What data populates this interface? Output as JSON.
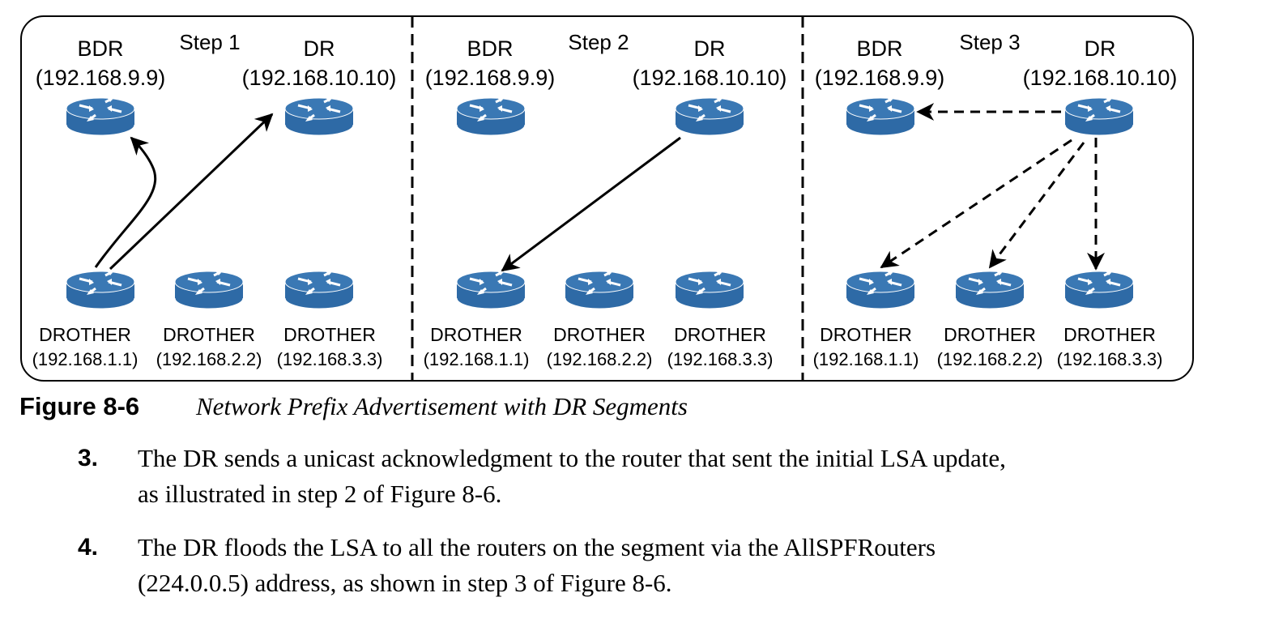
{
  "panels": [
    {
      "step_label": "Step 1",
      "bdr": {
        "role": "BDR",
        "ip": "(192.168.9.9)"
      },
      "dr": {
        "role": "DR",
        "ip": "(192.168.10.10)"
      },
      "drothers": [
        {
          "role": "DROTHER",
          "ip": "(192.168.1.1)"
        },
        {
          "role": "DROTHER",
          "ip": "(192.168.2.2)"
        },
        {
          "role": "DROTHER",
          "ip": "(192.168.3.3)"
        }
      ]
    },
    {
      "step_label": "Step 2",
      "bdr": {
        "role": "BDR",
        "ip": "(192.168.9.9)"
      },
      "dr": {
        "role": "DR",
        "ip": "(192.168.10.10)"
      },
      "drothers": [
        {
          "role": "DROTHER",
          "ip": "(192.168.1.1)"
        },
        {
          "role": "DROTHER",
          "ip": "(192.168.2.2)"
        },
        {
          "role": "DROTHER",
          "ip": "(192.168.3.3)"
        }
      ]
    },
    {
      "step_label": "Step 3",
      "bdr": {
        "role": "BDR",
        "ip": "(192.168.9.9)"
      },
      "dr": {
        "role": "DR",
        "ip": "(192.168.10.10)"
      },
      "drothers": [
        {
          "role": "DROTHER",
          "ip": "(192.168.1.1)"
        },
        {
          "role": "DROTHER",
          "ip": "(192.168.2.2)"
        },
        {
          "role": "DROTHER",
          "ip": "(192.168.3.3)"
        }
      ]
    }
  ],
  "caption": {
    "number": "Figure 8-6",
    "title": "Network Prefix Advertisement with DR Segments"
  },
  "steps": [
    {
      "number": "3.",
      "line1": "The DR sends a unicast acknowledgment to the router that sent the initial LSA update,",
      "line2": "as illustrated in step 2 of Figure 8-6."
    },
    {
      "number": "4.",
      "line1": "The DR floods the LSA to all the routers on the segment via the AllSPFRouters",
      "line2": "(224.0.0.5) address, as shown in step 3 of Figure 8-6."
    }
  ],
  "colors": {
    "router_body": "#2e6aa6",
    "router_top": "#3a78b4",
    "router_edge": "#ffffff",
    "line": "#000000"
  }
}
